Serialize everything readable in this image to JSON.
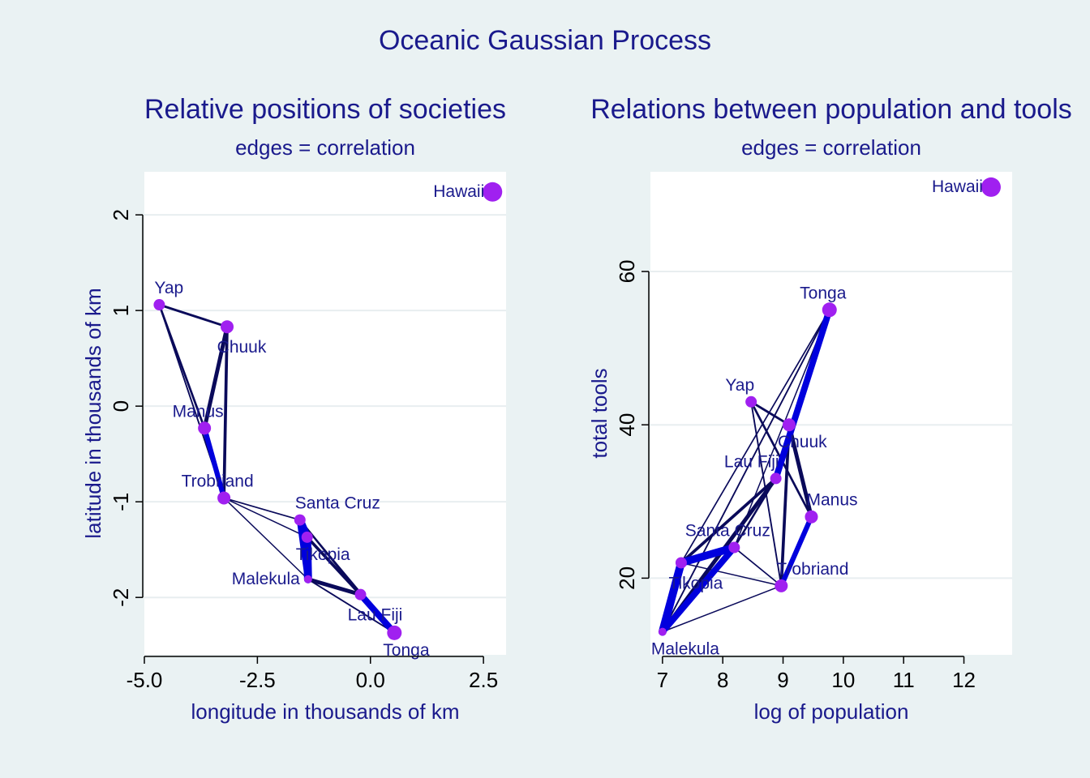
{
  "title": "Oceanic Gaussian Process",
  "colors": {
    "background": "#eaf2f3",
    "plot_bg": "#ffffff",
    "gridline": "#e8eef0",
    "title": "#1a1a8c",
    "label": "#1a1a8c",
    "point": "#a020f0",
    "edge": "#0a0a5a",
    "edge_strong": "#0000dd",
    "tick_text": "#000000"
  },
  "chart_data": [
    {
      "type": "scatter",
      "title": "Relative positions of societies",
      "subtitle": "edges = correlation",
      "xlabel": "longitude in thousands of km",
      "ylabel": "latitude in thousands of km",
      "xlim": [
        -5.0,
        3.0
      ],
      "ylim": [
        -2.6,
        2.45
      ],
      "xticks": [
        -5.0,
        -2.5,
        0.0,
        2.5
      ],
      "xtick_labels": [
        "-5.0",
        "-2.5",
        "0.0",
        "2.5"
      ],
      "yticks": [
        -2,
        -1,
        0,
        1,
        2
      ],
      "ytick_labels": [
        "-2",
        "-1",
        "0",
        "1",
        "2"
      ],
      "grid": true,
      "points": [
        {
          "name": "Malekula",
          "x": -1.38,
          "y": -1.81,
          "label_pos": "left"
        },
        {
          "name": "Tikopia",
          "x": -1.4,
          "y": -1.37,
          "label_pos": "right-below"
        },
        {
          "name": "Santa Cruz",
          "x": -1.56,
          "y": -1.19,
          "label_pos": "above-right"
        },
        {
          "name": "Yap",
          "x": -4.67,
          "y": 1.06,
          "label_pos": "above-right"
        },
        {
          "name": "Lau Fiji",
          "x": -0.22,
          "y": -1.97,
          "label_pos": "below"
        },
        {
          "name": "Trobriand",
          "x": -3.24,
          "y": -0.96,
          "label_pos": "above"
        },
        {
          "name": "Chuuk",
          "x": -3.17,
          "y": 0.83,
          "label_pos": "below"
        },
        {
          "name": "Manus",
          "x": -3.67,
          "y": -0.23,
          "label_pos": "above"
        },
        {
          "name": "Tonga",
          "x": 0.53,
          "y": -2.37,
          "label_pos": "right-below"
        },
        {
          "name": "Hawaii",
          "x": 2.7,
          "y": 2.24,
          "label_pos": "left"
        }
      ],
      "point_sizes": [
        5.0,
        7.0,
        7.0,
        7.0,
        7.0,
        8.0,
        8.0,
        8.0,
        9.0,
        12.0
      ]
    },
    {
      "type": "scatter",
      "title": "Relations between population and tools",
      "subtitle": "edges = correlation",
      "xlabel": "log of population",
      "ylabel": "total tools",
      "xlim": [
        6.8,
        12.8
      ],
      "ylim": [
        10,
        73
      ],
      "xticks": [
        7,
        8,
        9,
        10,
        11,
        12
      ],
      "xtick_labels": [
        "7",
        "8",
        "9",
        "10",
        "11",
        "12"
      ],
      "yticks": [
        20,
        40,
        60
      ],
      "ytick_labels": [
        "20",
        "40",
        "60"
      ],
      "grid": true,
      "points": [
        {
          "name": "Malekula",
          "x": 7.0,
          "y": 13,
          "label_pos": "right-below"
        },
        {
          "name": "Tikopia",
          "x": 7.31,
          "y": 22,
          "label_pos": "below"
        },
        {
          "name": "Santa Cruz",
          "x": 8.19,
          "y": 24,
          "label_pos": "above"
        },
        {
          "name": "Yap",
          "x": 8.47,
          "y": 43,
          "label_pos": "above-left"
        },
        {
          "name": "Lau Fiji",
          "x": 8.88,
          "y": 33,
          "label_pos": "above-left"
        },
        {
          "name": "Trobriand",
          "x": 8.97,
          "y": 19,
          "label_pos": "above-right"
        },
        {
          "name": "Chuuk",
          "x": 9.1,
          "y": 40,
          "label_pos": "right-below"
        },
        {
          "name": "Manus",
          "x": 9.47,
          "y": 28,
          "label_pos": "above-right"
        },
        {
          "name": "Tonga",
          "x": 9.77,
          "y": 55,
          "label_pos": "above"
        },
        {
          "name": "Hawaii",
          "x": 12.45,
          "y": 71,
          "label_pos": "left"
        }
      ],
      "point_sizes": [
        5.0,
        7.0,
        7.0,
        7.0,
        7.0,
        8.0,
        8.0,
        8.0,
        9.0,
        12.0
      ]
    }
  ],
  "edges": [
    {
      "a": "Malekula",
      "b": "Tikopia",
      "rho": 0.92
    },
    {
      "a": "Tikopia",
      "b": "Santa Cruz",
      "rho": 0.88
    },
    {
      "a": "Malekula",
      "b": "Santa Cruz",
      "rho": 0.72
    },
    {
      "a": "Lau Fiji",
      "b": "Tonga",
      "rho": 0.72
    },
    {
      "a": "Trobriand",
      "b": "Manus",
      "rho": 0.55
    },
    {
      "a": "Chuuk",
      "b": "Manus",
      "rho": 0.42
    },
    {
      "a": "Malekula",
      "b": "Lau Fiji",
      "rho": 0.42
    },
    {
      "a": "Tikopia",
      "b": "Lau Fiji",
      "rho": 0.3
    },
    {
      "a": "Chuuk",
      "b": "Trobriand",
      "rho": 0.3
    },
    {
      "a": "Yap",
      "b": "Chuuk",
      "rho": 0.22
    },
    {
      "a": "Yap",
      "b": "Manus",
      "rho": 0.2
    },
    {
      "a": "Santa Cruz",
      "b": "Lau Fiji",
      "rho": 0.18
    },
    {
      "a": "Yap",
      "b": "Trobriand",
      "rho": 0.12
    },
    {
      "a": "Malekula",
      "b": "Tonga",
      "rho": 0.12
    },
    {
      "a": "Trobriand",
      "b": "Santa Cruz",
      "rho": 0.1
    },
    {
      "a": "Trobriand",
      "b": "Malekula",
      "rho": 0.08
    },
    {
      "a": "Tikopia",
      "b": "Tonga",
      "rho": 0.1
    },
    {
      "a": "Trobriand",
      "b": "Tikopia",
      "rho": 0.08
    },
    {
      "a": "Santa Cruz",
      "b": "Tonga",
      "rho": 0.08
    }
  ]
}
